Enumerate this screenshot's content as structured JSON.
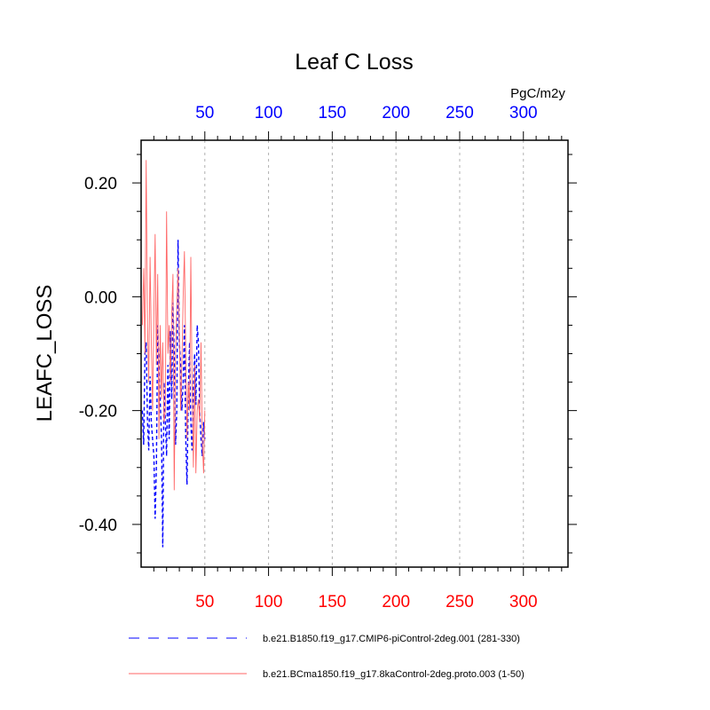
{
  "chart_data": {
    "type": "line",
    "title": "Leaf C Loss",
    "ylabel": "LEAFC_LOSS",
    "units": "PgC/m2y",
    "xlim": [
      0,
      335
    ],
    "ylim": [
      -0.475,
      0.275
    ],
    "x_ticks": [
      50,
      100,
      150,
      200,
      250,
      300
    ],
    "x_tick_labels": [
      "50",
      "100",
      "150",
      "200",
      "250",
      "300"
    ],
    "y_ticks": [
      0.2,
      0.0,
      -0.2,
      -0.4
    ],
    "y_tick_labels": [
      "0.20",
      "0.00",
      "-0.20",
      "-0.40"
    ],
    "grid": "vertical dashed at x ticks",
    "top_axis_color": "#0000ff",
    "bottom_axis_color": "#ff0000",
    "series": [
      {
        "name": "b.e21.B1850.f19_g17.CMIP6-piControl-2deg.001 (281-330)",
        "color": "#0000ff",
        "dash": "dashed",
        "x": [
          1,
          2,
          3,
          4,
          5,
          6,
          7,
          8,
          9,
          10,
          11,
          12,
          13,
          14,
          15,
          16,
          17,
          18,
          19,
          20,
          21,
          22,
          23,
          24,
          25,
          26,
          27,
          28,
          29,
          30,
          31,
          32,
          33,
          34,
          35,
          36,
          37,
          38,
          39,
          40,
          41,
          42,
          43,
          44,
          45,
          46,
          47,
          48,
          49,
          50
        ],
        "values": [
          -0.2,
          -0.26,
          -0.1,
          -0.08,
          -0.22,
          -0.27,
          -0.14,
          -0.22,
          -0.25,
          -0.28,
          -0.39,
          -0.3,
          -0.05,
          -0.12,
          -0.18,
          -0.25,
          -0.44,
          -0.15,
          -0.22,
          -0.28,
          -0.12,
          -0.25,
          -0.06,
          -0.18,
          -0.01,
          -0.1,
          -0.26,
          -0.2,
          0.1,
          -0.08,
          -0.12,
          -0.2,
          -0.15,
          -0.05,
          -0.25,
          -0.33,
          -0.18,
          -0.08,
          -0.22,
          -0.27,
          -0.16,
          -0.1,
          -0.19,
          -0.05,
          -0.08,
          -0.2,
          -0.25,
          -0.28,
          -0.22,
          -0.25
        ]
      },
      {
        "name": "b.e21.BCma1850.f19_g17.8kaControl-2deg.proto.003 (1-50)",
        "color": "#ff6666",
        "dash": "solid",
        "x": [
          1,
          2,
          3,
          4,
          5,
          6,
          7,
          8,
          9,
          10,
          11,
          12,
          13,
          14,
          15,
          16,
          17,
          18,
          19,
          20,
          21,
          22,
          23,
          24,
          25,
          26,
          27,
          28,
          29,
          30,
          31,
          32,
          33,
          34,
          35,
          36,
          37,
          38,
          39,
          40,
          41,
          42,
          43,
          44,
          45,
          46,
          47,
          48,
          49,
          50
        ],
        "values": [
          -0.05,
          0.05,
          -0.1,
          0.24,
          -0.05,
          -0.15,
          0.07,
          -0.08,
          -0.2,
          -0.03,
          0.11,
          -0.12,
          0.04,
          -0.25,
          -0.05,
          -0.18,
          -0.08,
          -0.22,
          -0.2,
          0.15,
          -0.1,
          -0.05,
          -0.15,
          -0.03,
          0.04,
          -0.34,
          -0.1,
          -0.02,
          0.05,
          -0.06,
          -0.2,
          -0.12,
          0.0,
          0.08,
          -0.1,
          -0.25,
          -0.15,
          -0.2,
          0.07,
          -0.15,
          -0.3,
          -0.12,
          -0.31,
          -0.2,
          -0.18,
          -0.22,
          -0.08,
          -0.25,
          -0.31,
          -0.2
        ]
      }
    ]
  }
}
